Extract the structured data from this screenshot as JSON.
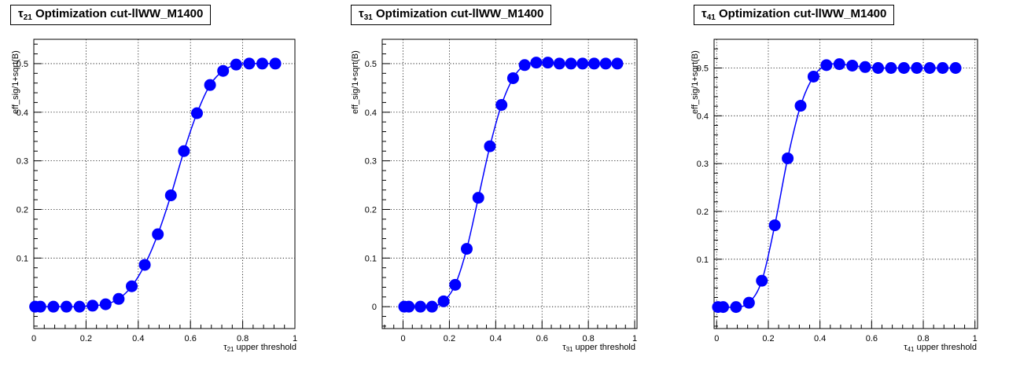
{
  "chart_data": [
    {
      "type": "line",
      "title_symbol": "τ",
      "title_sub": "21",
      "title_text": " Optimization cut-llWW_M1400",
      "xlabel_symbol": "τ",
      "xlabel_sub": "21",
      "xlabel_text": " upper threshold",
      "ylabel": "eff_sig/1+sqrt(B)",
      "xlim": [
        0,
        1
      ],
      "ylim": [
        -0.045,
        0.55
      ],
      "xticks": [
        "0",
        "0.2",
        "0.4",
        "0.6",
        "0.8",
        "1"
      ],
      "yticks": [
        "0.1",
        "0.2",
        "0.3",
        "0.4",
        "0.5"
      ],
      "grid": true,
      "color": "#0000ff",
      "x": [
        0.005,
        0.025,
        0.075,
        0.125,
        0.175,
        0.225,
        0.275,
        0.325,
        0.375,
        0.425,
        0.475,
        0.525,
        0.575,
        0.625,
        0.675,
        0.725,
        0.775,
        0.825,
        0.875,
        0.925
      ],
      "y": [
        0.0,
        0.0,
        0.0,
        0.0,
        0.0,
        0.002,
        0.005,
        0.016,
        0.042,
        0.086,
        0.149,
        0.229,
        0.32,
        0.398,
        0.456,
        0.485,
        0.498,
        0.5,
        0.5,
        0.5
      ]
    },
    {
      "type": "line",
      "title_symbol": "τ",
      "title_sub": "31",
      "title_text": " Optimization cut-llWW_M1400",
      "xlabel_symbol": "τ",
      "xlabel_sub": "31",
      "xlabel_text": " upper threshold",
      "ylabel": "eff_sig/1+sqrt(B)",
      "xlim": [
        -0.09,
        1.01
      ],
      "ylim": [
        -0.045,
        0.55
      ],
      "xticks": [
        "0",
        "0.2",
        "0.4",
        "0.6",
        "0.8",
        "1"
      ],
      "yticks": [
        "0",
        "0.1",
        "0.2",
        "0.3",
        "0.4",
        "0.5"
      ],
      "grid": true,
      "color": "#0000ff",
      "x": [
        0.005,
        0.025,
        0.075,
        0.125,
        0.175,
        0.225,
        0.275,
        0.325,
        0.375,
        0.425,
        0.475,
        0.525,
        0.575,
        0.625,
        0.675,
        0.725,
        0.775,
        0.825,
        0.875,
        0.925
      ],
      "y": [
        0.0,
        0.0,
        0.0,
        0.0,
        0.011,
        0.045,
        0.119,
        0.224,
        0.33,
        0.415,
        0.47,
        0.497,
        0.502,
        0.502,
        0.5,
        0.5,
        0.5,
        0.5,
        0.5,
        0.5
      ]
    },
    {
      "type": "line",
      "title_symbol": "τ",
      "title_sub": "41",
      "title_text": " Optimization cut-llWW_M1400",
      "xlabel_symbol": "τ",
      "xlabel_sub": "41",
      "xlabel_text": " upper threshold",
      "ylabel": "eff_sig/1+sqrt(B)",
      "xlim": [
        -0.01,
        1.01
      ],
      "ylim": [
        -0.045,
        0.56
      ],
      "xticks": [
        "0",
        "0.2",
        "0.4",
        "0.6",
        "0.8",
        "1"
      ],
      "yticks": [
        "0.1",
        "0.2",
        "0.3",
        "0.4",
        "0.5"
      ],
      "grid": true,
      "color": "#0000ff",
      "x": [
        0.005,
        0.025,
        0.075,
        0.125,
        0.175,
        0.225,
        0.275,
        0.325,
        0.375,
        0.425,
        0.475,
        0.525,
        0.575,
        0.625,
        0.675,
        0.725,
        0.775,
        0.825,
        0.875,
        0.925
      ],
      "y": [
        0.0,
        0.0,
        0.0,
        0.009,
        0.055,
        0.171,
        0.311,
        0.421,
        0.482,
        0.506,
        0.508,
        0.505,
        0.502,
        0.5,
        0.5,
        0.5,
        0.5,
        0.5,
        0.5,
        0.5
      ]
    }
  ]
}
